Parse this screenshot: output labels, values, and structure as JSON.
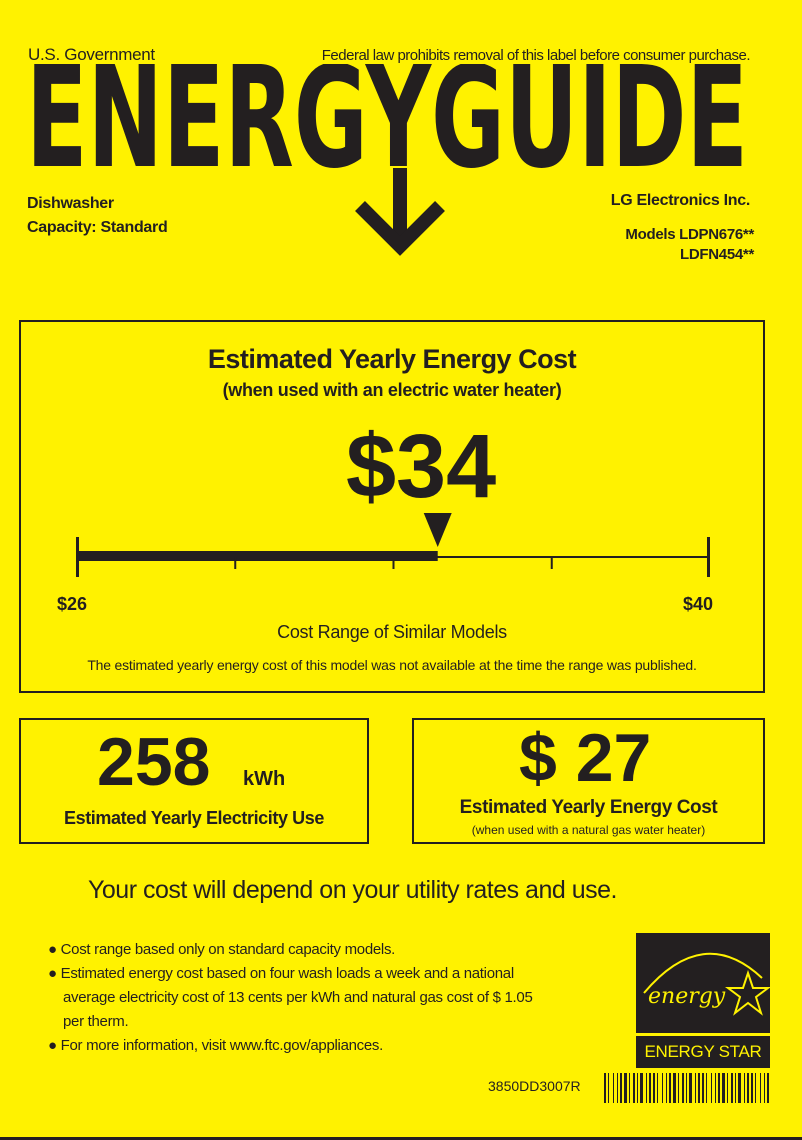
{
  "header": {
    "government": "U.S. Government",
    "notice": "Federal law prohibits removal of this label before consumer purchase.",
    "title": "ENERGYGUIDE",
    "appliance": "Dishwasher",
    "capacity": "Capacity: Standard",
    "manufacturer": "LG Electronics Inc.",
    "models_label": "Models",
    "models": [
      "LDPN676**",
      "LDFN454**"
    ]
  },
  "electric_cost": {
    "title": "Estimated Yearly Energy Cost",
    "subtitle": "(when used with an electric water heater)",
    "value": "$34",
    "value_number": 34,
    "range_min_label": "$26",
    "range_max_label": "$40",
    "range_min": 26,
    "range_max": 40,
    "range_caption": "Cost Range of Similar Models",
    "note": "The estimated yearly energy cost of this model was not available at the time the range was published."
  },
  "electricity_use": {
    "value": "258",
    "unit": "kWh",
    "label": "Estimated Yearly Electricity Use"
  },
  "gas_cost": {
    "value": "$ 27",
    "label": "Estimated Yearly Energy Cost",
    "sublabel": "(when used with a natural gas water heater)"
  },
  "footer": {
    "headline": "Your cost will depend on your utility rates and use.",
    "bullets": [
      "Cost range based only on standard capacity models.",
      "Estimated energy cost based on four wash loads a week and a national",
      "average electricity cost of",
      "cents per kWh and natural gas cost of $",
      "per therm.",
      "For more information, visit www.ftc.gov/appliances."
    ],
    "electricity_rate": "13",
    "gas_rate": "1.05",
    "energy_star_label": "ENERGY STAR",
    "energy_star_script": "energy",
    "part_number": "3850DD3007R"
  },
  "colors": {
    "background": "#fff200",
    "ink": "#231f20"
  }
}
